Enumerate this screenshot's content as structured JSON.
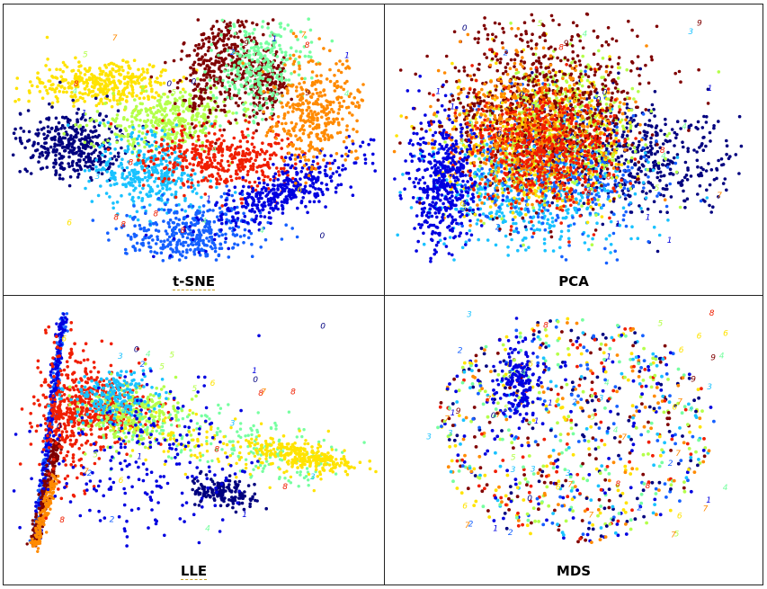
{
  "chart_data": [
    {
      "type": "scatter",
      "title": "t-SNE",
      "colors": [
        "#00007f",
        "#0000e0",
        "#1560ff",
        "#19c2ff",
        "#76ffa0",
        "#b4ff4a",
        "#ffe300",
        "#ff8a00",
        "#f01e00",
        "#7f0000"
      ],
      "marker_labels": [
        "0",
        "1",
        "2",
        "3",
        "4",
        "5",
        "6",
        "7",
        "8",
        "9"
      ]
    },
    {
      "type": "scatter",
      "title": "PCA",
      "colors": [
        "#00007f",
        "#0000e0",
        "#1560ff",
        "#19c2ff",
        "#76ffa0",
        "#b4ff4a",
        "#ffe300",
        "#ff8a00",
        "#f01e00",
        "#7f0000"
      ],
      "marker_labels": [
        "0",
        "1",
        "2",
        "3",
        "4",
        "5",
        "6",
        "7",
        "8",
        "9"
      ]
    },
    {
      "type": "scatter",
      "title": "LLE",
      "colors": [
        "#00007f",
        "#0000e0",
        "#1560ff",
        "#19c2ff",
        "#76ffa0",
        "#b4ff4a",
        "#ffe300",
        "#ff8a00",
        "#f01e00",
        "#7f0000"
      ],
      "marker_labels": [
        "0",
        "1",
        "2",
        "3",
        "4",
        "5",
        "6",
        "7",
        "8",
        "9"
      ]
    },
    {
      "type": "scatter",
      "title": "MDS",
      "colors": [
        "#00007f",
        "#0000e0",
        "#1560ff",
        "#19c2ff",
        "#76ffa0",
        "#b4ff4a",
        "#ffe300",
        "#ff8a00",
        "#f01e00",
        "#7f0000"
      ],
      "marker_labels": [
        "0",
        "1",
        "2",
        "3",
        "4",
        "5",
        "6",
        "7",
        "8",
        "9"
      ]
    }
  ]
}
